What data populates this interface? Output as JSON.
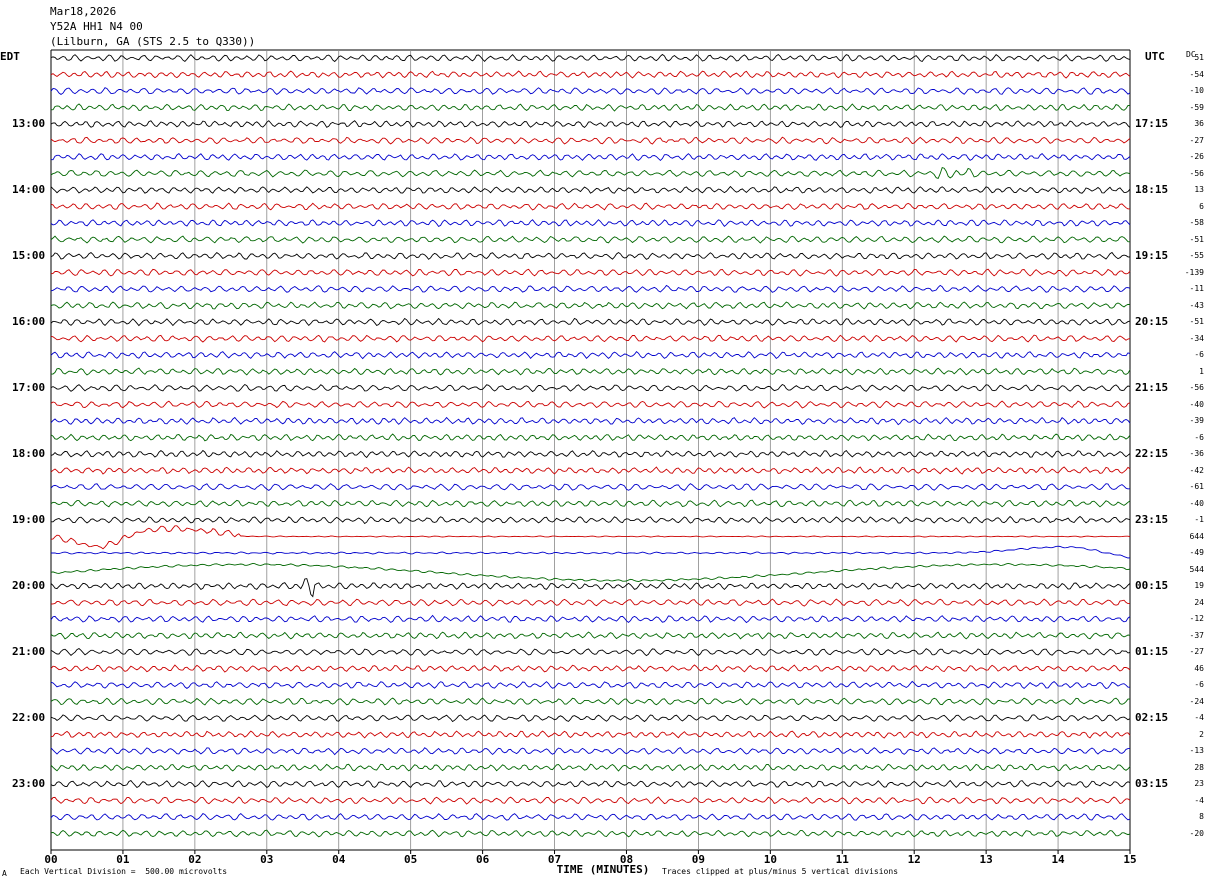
{
  "header": {
    "date": "Mar18,2026",
    "station": "Y52A HH1 N4 00",
    "location": "(Lilburn, GA (STS 2.5 to Q330))"
  },
  "left_label": "EDT",
  "right_label": "UTC",
  "dc_label": "DC",
  "footer": {
    "scale_note": "Each Vertical Division =  500.00 microvolts",
    "clip_note": "Traces clipped at plus/minus 5 vertical divisions",
    "mark": "A"
  },
  "chart_data": {
    "type": "helicorder",
    "xlabel": "TIME (MINUTES)",
    "xlim": [
      0,
      15
    ],
    "x_ticks": [
      "00",
      "01",
      "02",
      "03",
      "04",
      "05",
      "06",
      "07",
      "08",
      "09",
      "10",
      "11",
      "12",
      "13",
      "14",
      "15"
    ],
    "trace_colors": [
      "#000000",
      "#cc0000",
      "#0000cc",
      "#006600"
    ],
    "left_times": [
      "13:00",
      "14:00",
      "15:00",
      "16:00",
      "17:00",
      "18:00",
      "19:00",
      "20:00",
      "21:00",
      "22:00",
      "23:00"
    ],
    "right_times": [
      "17:15",
      "18:15",
      "19:15",
      "20:15",
      "21:15",
      "22:15",
      "23:15",
      "00:15",
      "01:15",
      "02:15",
      "03:15"
    ],
    "dc_offsets": [
      "51",
      "-54",
      "-10",
      "-59",
      "36",
      "-27",
      "-26",
      "-56",
      "13",
      "6",
      "-58",
      "-51",
      "-55",
      "-139",
      "-11",
      "-43",
      "-51",
      "-34",
      "-6",
      "1",
      "-56",
      "-40",
      "-39",
      "-6",
      "-36",
      "-42",
      "-61",
      "-40",
      "-1",
      "644",
      "-49",
      "544",
      "19",
      "24",
      "-12",
      "-37",
      "-27",
      "46",
      "-6",
      "-24",
      "-4",
      "2",
      "-13",
      "28",
      "23",
      "-4",
      "8",
      "-20"
    ]
  }
}
